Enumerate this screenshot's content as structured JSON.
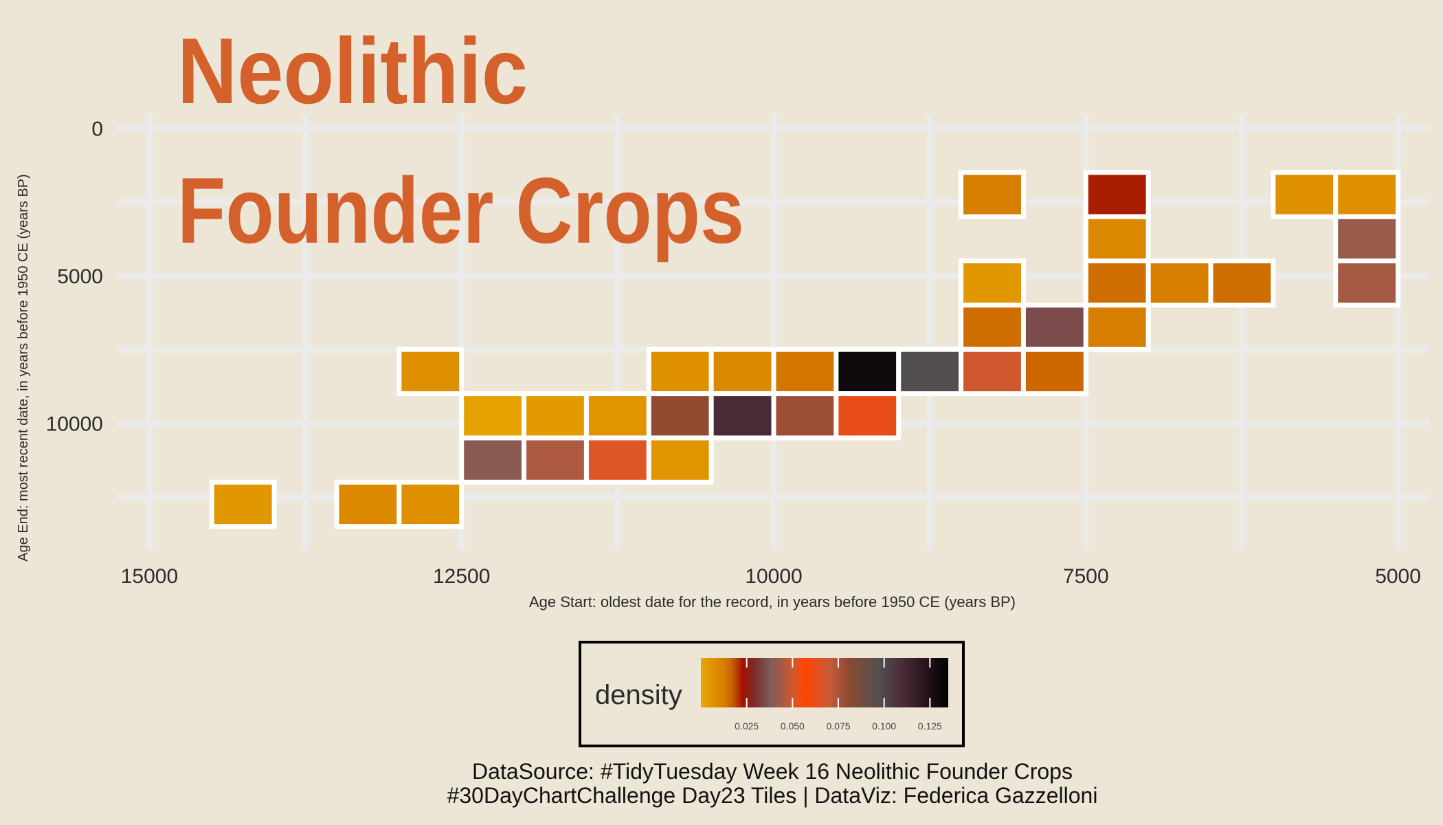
{
  "colors": {
    "background": "#ede6d6",
    "title": "#d4612b",
    "grid": "#ebebeb",
    "tile_border": "#ffffff",
    "axis_text": "#2b2b2b",
    "legend_border": "#000000"
  },
  "chart_data": {
    "type": "heatmap",
    "title": "Neolithic\nFounder Crops",
    "xlabel": "Age Start: oldest date for the record, in years before 1950 CE (years BP)",
    "ylabel": "Age End: most recent date, in years before 1950 CE (years BP)",
    "x_reversed": true,
    "y_reversed": true,
    "xlim": [
      15250,
      4750
    ],
    "ylim": [
      -500,
      14300
    ],
    "x_ticks": [
      15000,
      12500,
      10000,
      7500,
      5000
    ],
    "x_tick_labels": [
      "15000",
      "12500",
      "10000",
      "7500",
      "5000"
    ],
    "y_ticks": [
      0,
      5000,
      10000
    ],
    "y_tick_labels": [
      "0",
      "5000",
      "10000"
    ],
    "x_minor_grid": [
      13750,
      11250,
      8750,
      6250
    ],
    "y_minor_grid": [
      2500,
      7500,
      12500
    ],
    "bin_width_x": 500,
    "bin_width_y": 1500,
    "tiles": [
      {
        "x": 14250,
        "y": 12750,
        "density": 0.005
      },
      {
        "x": 13250,
        "y": 12750,
        "density": 0.009
      },
      {
        "x": 12750,
        "y": 12750,
        "density": 0.007
      },
      {
        "x": 12750,
        "y": 8250,
        "density": 0.007
      },
      {
        "x": 12250,
        "y": 9750,
        "density": 0.002
      },
      {
        "x": 12250,
        "y": 11250,
        "density": 0.04
      },
      {
        "x": 11750,
        "y": 9750,
        "density": 0.004
      },
      {
        "x": 11750,
        "y": 11250,
        "density": 0.045
      },
      {
        "x": 11250,
        "y": 9750,
        "density": 0.006
      },
      {
        "x": 11250,
        "y": 11250,
        "density": 0.052
      },
      {
        "x": 10750,
        "y": 8250,
        "density": 0.007
      },
      {
        "x": 10750,
        "y": 9750,
        "density": 0.08
      },
      {
        "x": 10750,
        "y": 11250,
        "density": 0.006
      },
      {
        "x": 10250,
        "y": 8250,
        "density": 0.009
      },
      {
        "x": 10250,
        "y": 9750,
        "density": 0.11
      },
      {
        "x": 9750,
        "y": 8250,
        "density": 0.014
      },
      {
        "x": 9750,
        "y": 9750,
        "density": 0.078
      },
      {
        "x": 9250,
        "y": 8250,
        "density": 0.13
      },
      {
        "x": 9250,
        "y": 9750,
        "density": 0.062
      },
      {
        "x": 8750,
        "y": 8250,
        "density": 0.098
      },
      {
        "x": 8250,
        "y": 2250,
        "density": 0.012
      },
      {
        "x": 8250,
        "y": 5250,
        "density": 0.005
      },
      {
        "x": 8250,
        "y": 6750,
        "density": 0.015
      },
      {
        "x": 8250,
        "y": 8250,
        "density": 0.05
      },
      {
        "x": 7750,
        "y": 6750,
        "density": 0.035
      },
      {
        "x": 7750,
        "y": 8250,
        "density": 0.016
      },
      {
        "x": 7250,
        "y": 2250,
        "density": 0.022
      },
      {
        "x": 7250,
        "y": 3750,
        "density": 0.009
      },
      {
        "x": 7250,
        "y": 5250,
        "density": 0.015
      },
      {
        "x": 7250,
        "y": 6750,
        "density": 0.012
      },
      {
        "x": 6750,
        "y": 5250,
        "density": 0.012
      },
      {
        "x": 6250,
        "y": 5250,
        "density": 0.015
      },
      {
        "x": 5750,
        "y": 2250,
        "density": 0.007
      },
      {
        "x": 5250,
        "y": 2250,
        "density": 0.007
      },
      {
        "x": 5250,
        "y": 3750,
        "density": 0.042
      },
      {
        "x": 5250,
        "y": 5250,
        "density": 0.044
      }
    ],
    "legend": {
      "title": "density",
      "position": "bottom",
      "ticks": [
        0.025,
        0.05,
        0.075,
        0.1,
        0.125
      ],
      "tick_labels": [
        "0.025",
        "0.050",
        "0.075",
        "0.100",
        "0.125"
      ],
      "range": [
        0,
        0.135
      ],
      "palette": [
        {
          "at": 0.0,
          "color": "#e8a800"
        },
        {
          "at": 0.1,
          "color": "#d47a00"
        },
        {
          "at": 0.13,
          "color": "#c55a00"
        },
        {
          "at": 0.17,
          "color": "#a31000"
        },
        {
          "at": 0.22,
          "color": "#7a2e2e"
        },
        {
          "at": 0.28,
          "color": "#7b5c5a"
        },
        {
          "at": 0.38,
          "color": "#d9582a"
        },
        {
          "at": 0.42,
          "color": "#ff4500"
        },
        {
          "at": 0.52,
          "color": "#c85a3a"
        },
        {
          "at": 0.6,
          "color": "#8a4a30"
        },
        {
          "at": 0.72,
          "color": "#525050"
        },
        {
          "at": 0.82,
          "color": "#4a2a35"
        },
        {
          "at": 1.0,
          "color": "#000000"
        }
      ]
    }
  },
  "caption": {
    "line1": "DataSource: #TidyTuesday Week 16 Neolithic Founder Crops",
    "line2": "#30DayChartChallenge Day23 Tiles | DataViz: Federica Gazzelloni"
  }
}
